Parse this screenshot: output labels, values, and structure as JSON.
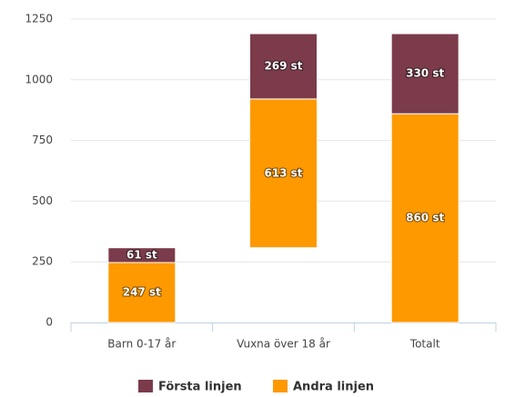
{
  "chart_data": {
    "type": "waterfall",
    "categories": [
      "Barn 0-17 år",
      "Vuxna över 18 år",
      "Totalt"
    ],
    "series": [
      {
        "name": "Första linjen",
        "color": "#7b3b4b",
        "values": [
          61,
          269,
          330
        ],
        "value_labels": [
          "61 st",
          "269 st",
          "330 st"
        ]
      },
      {
        "name": "Andra linjen",
        "color": "#ff9900",
        "values": [
          247,
          613,
          860
        ],
        "value_labels": [
          "247 st",
          "613 st",
          "860 st"
        ]
      }
    ],
    "ylim": [
      0,
      1250
    ],
    "yticks": [
      0,
      250,
      500,
      750,
      1000,
      1250
    ],
    "grid": true,
    "legend": "bottom"
  }
}
